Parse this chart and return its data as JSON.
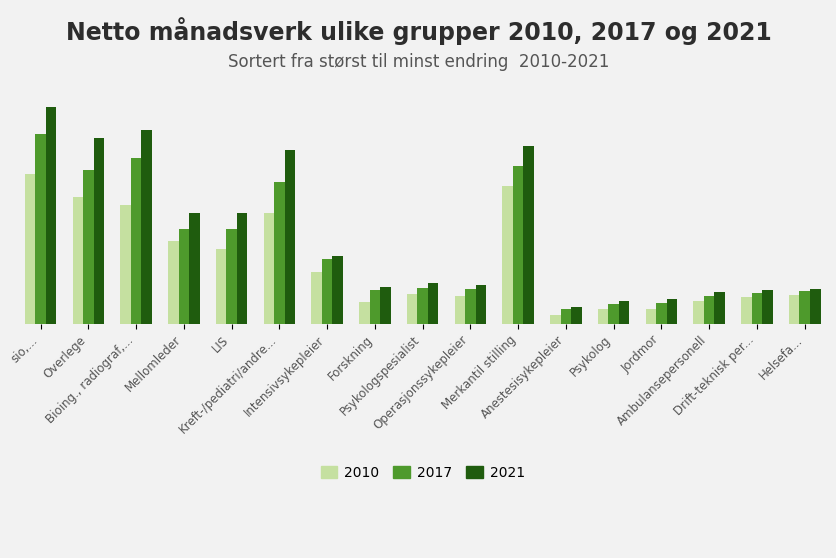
{
  "title": "Netto månadsverk ulike grupper 2010, 2017 og 2021",
  "subtitle": "Sortert fra størst til minst endring  2010-2021",
  "categories": [
    "sio,...",
    "Overlege",
    "Bioing., radiograf,...",
    "Mellomleder",
    "LIS",
    "Kreft-/pediatri/andre...",
    "Intensivsykepleier",
    "Forskning",
    "Psykologspesialist",
    "Operasjonssykepleier",
    "Merkantil stilling",
    "Anestesisykepleier",
    "Psykolog",
    "Jordmor",
    "Ambulansepersonell",
    "Drift-teknisk per...",
    "Helsefa..."
  ],
  "values_2010": [
    3800,
    3200,
    3000,
    2100,
    1900,
    2800,
    1300,
    550,
    750,
    700,
    3500,
    220,
    380,
    380,
    580,
    680,
    720
  ],
  "values_2017": [
    4800,
    3900,
    4200,
    2400,
    2400,
    3600,
    1650,
    850,
    900,
    880,
    4000,
    380,
    510,
    520,
    710,
    770,
    820
  ],
  "values_2021": [
    5500,
    4700,
    4900,
    2800,
    2800,
    4400,
    1720,
    940,
    1020,
    970,
    4500,
    420,
    570,
    620,
    800,
    840,
    870
  ],
  "color_2010": "#c5e0a0",
  "color_2017": "#4e9a2c",
  "color_2021": "#1f5c0e",
  "background_color": "#f2f2f2",
  "title_fontsize": 17,
  "subtitle_fontsize": 12,
  "tick_fontsize": 8.5,
  "legend_fontsize": 10
}
